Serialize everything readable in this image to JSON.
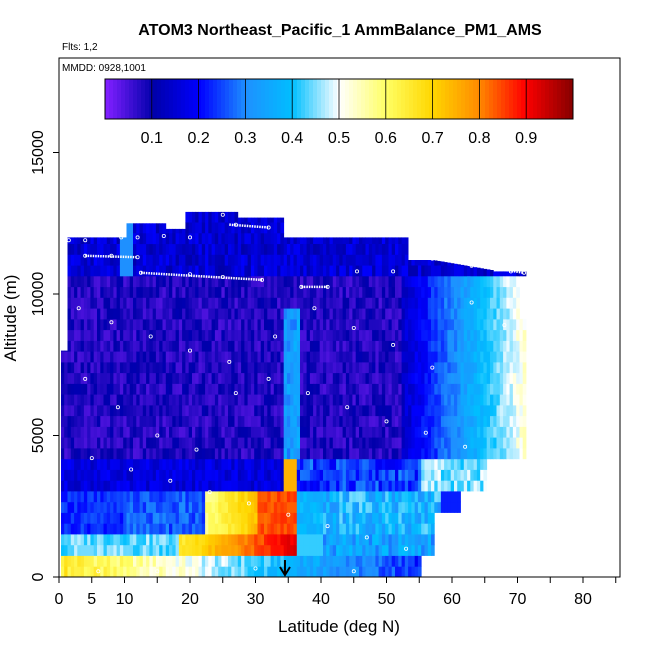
{
  "chart_data": {
    "type": "heatmap",
    "title": "ATOM3 Northeast_Pacific_1 AmmBalance_PM1_AMS",
    "flights_label": "Flts: 1,2",
    "date_label": "MMDD: 0928,1001",
    "xlabel": "Latitude (deg N)",
    "ylabel": "Altitude (m)",
    "xlim": [
      0,
      85
    ],
    "ylim": [
      0,
      18000
    ],
    "x_ticks": [
      0,
      5,
      10,
      20,
      30,
      40,
      50,
      60,
      70,
      80
    ],
    "x_tick_labels": [
      "0",
      "5",
      "10",
      "20",
      "30",
      "40",
      "50",
      "60",
      "70",
      "80"
    ],
    "y_ticks": [
      0,
      5000,
      10000,
      15000
    ],
    "y_tick_labels": [
      "0",
      "5000",
      "10000",
      "15000"
    ],
    "colorbar": {
      "range": [
        0,
        1
      ],
      "ticks": [
        0.1,
        0.2,
        0.3,
        0.4,
        0.5,
        0.6,
        0.7,
        0.8,
        0.9
      ],
      "tick_labels": [
        "0.1",
        "0.2",
        "0.3",
        "0.4",
        "0.5",
        "0.6",
        "0.7",
        "0.8",
        "0.9"
      ],
      "colors": [
        "#7f1fff",
        "#0000aa",
        "#0000ff",
        "#1e90ff",
        "#00bfff",
        "#ffffff",
        "#ffff66",
        "#ffd700",
        "#ff8c00",
        "#ff0000",
        "#8b0000"
      ]
    },
    "marker": {
      "x": 34.5,
      "y": 500,
      "shape": "down-arrow"
    },
    "flight_track_points": [
      {
        "x": 1.5,
        "y": 11900
      },
      {
        "x": 4,
        "y": 11900
      },
      {
        "x": 4,
        "y": 11350
      },
      {
        "x": 8,
        "y": 11350
      },
      {
        "x": 12,
        "y": 11300
      },
      {
        "x": 9.5,
        "y": 12000
      },
      {
        "x": 12,
        "y": 12000
      },
      {
        "x": 16,
        "y": 12050
      },
      {
        "x": 20,
        "y": 12000
      },
      {
        "x": 25,
        "y": 12800
      },
      {
        "x": 27,
        "y": 12450
      },
      {
        "x": 32,
        "y": 12350
      },
      {
        "x": 12.5,
        "y": 10750
      },
      {
        "x": 20,
        "y": 10700
      },
      {
        "x": 25,
        "y": 10600
      },
      {
        "x": 31,
        "y": 10500
      },
      {
        "x": 37,
        "y": 10250
      },
      {
        "x": 41,
        "y": 10250
      },
      {
        "x": 45.5,
        "y": 10800
      },
      {
        "x": 51,
        "y": 10800
      },
      {
        "x": 57,
        "y": 11250
      },
      {
        "x": 63,
        "y": 11000
      },
      {
        "x": 69,
        "y": 10800
      },
      {
        "x": 71,
        "y": 10750
      },
      {
        "x": 3,
        "y": 9500
      },
      {
        "x": 8,
        "y": 9000
      },
      {
        "x": 14,
        "y": 8500
      },
      {
        "x": 20,
        "y": 8000
      },
      {
        "x": 26,
        "y": 7600
      },
      {
        "x": 32,
        "y": 7000
      },
      {
        "x": 38,
        "y": 6500
      },
      {
        "x": 44,
        "y": 6000
      },
      {
        "x": 50,
        "y": 5500
      },
      {
        "x": 56,
        "y": 5100
      },
      {
        "x": 62,
        "y": 4600
      },
      {
        "x": 5,
        "y": 4200
      },
      {
        "x": 11,
        "y": 3800
      },
      {
        "x": 17,
        "y": 3400
      },
      {
        "x": 23,
        "y": 3000
      },
      {
        "x": 29,
        "y": 2600
      },
      {
        "x": 35,
        "y": 2200
      },
      {
        "x": 41,
        "y": 1800
      },
      {
        "x": 47,
        "y": 1400
      },
      {
        "x": 53,
        "y": 1000
      },
      {
        "x": 6,
        "y": 200
      },
      {
        "x": 15,
        "y": 200
      },
      {
        "x": 30,
        "y": 300
      },
      {
        "x": 45,
        "y": 200
      },
      {
        "x": 4,
        "y": 7000
      },
      {
        "x": 9,
        "y": 6000
      },
      {
        "x": 15,
        "y": 5000
      },
      {
        "x": 21,
        "y": 4500
      },
      {
        "x": 27,
        "y": 6500
      },
      {
        "x": 33,
        "y": 8500
      },
      {
        "x": 39,
        "y": 9500
      },
      {
        "x": 45,
        "y": 8800
      },
      {
        "x": 51,
        "y": 8200
      },
      {
        "x": 57,
        "y": 7400
      },
      {
        "x": 63,
        "y": 9700
      },
      {
        "x": 68,
        "y": 8900
      }
    ]
  }
}
